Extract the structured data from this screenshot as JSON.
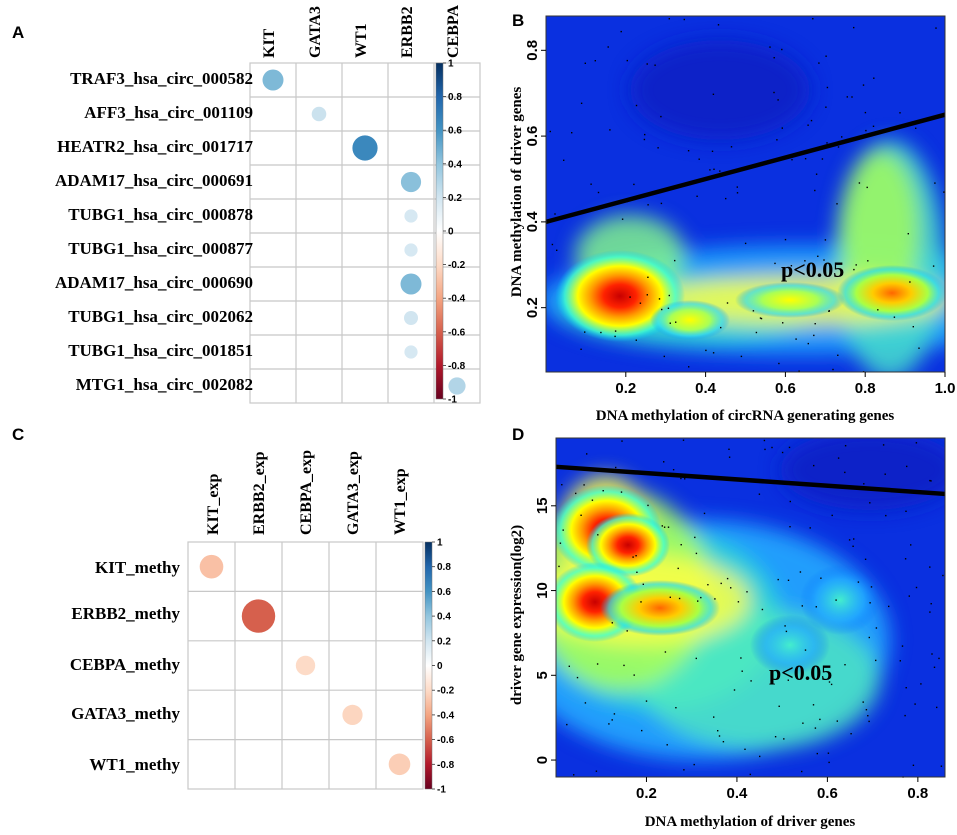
{
  "chart_data": [
    {
      "panel": "A",
      "type": "heatmap",
      "subtype": "correlation-dot-matrix",
      "columns": [
        "KIT",
        "GATA3",
        "WT1",
        "ERBB2",
        "CEBPA"
      ],
      "rows": [
        "TRAF3_hsa_circ_000582",
        "AFF3_hsa_circ_001109",
        "HEATR2_hsa_circ_001717",
        "ADAM17_hsa_circ_000691",
        "TUBG1_hsa_circ_000878",
        "TUBG1_hsa_circ_000877",
        "ADAM17_hsa_circ_000690",
        "TUBG1_hsa_circ_002062",
        "TUBG1_hsa_circ_001851",
        "MTG1_hsa_circ_002082"
      ],
      "values": [
        {
          "row": 0,
          "col": 0,
          "value": 0.45
        },
        {
          "row": 1,
          "col": 1,
          "value": 0.22
        },
        {
          "row": 2,
          "col": 2,
          "value": 0.65
        },
        {
          "row": 3,
          "col": 3,
          "value": 0.42
        },
        {
          "row": 4,
          "col": 3,
          "value": 0.18
        },
        {
          "row": 5,
          "col": 3,
          "value": 0.18
        },
        {
          "row": 6,
          "col": 3,
          "value": 0.45
        },
        {
          "row": 7,
          "col": 3,
          "value": 0.2
        },
        {
          "row": 8,
          "col": 3,
          "value": 0.18
        },
        {
          "row": 9,
          "col": 4,
          "value": 0.3
        }
      ],
      "colorbar": {
        "range": [
          -1,
          1
        ],
        "ticks": [
          "1",
          "0.8",
          "0.6",
          "0.4",
          "0.2",
          "0",
          "-0.2",
          "-0.4",
          "-0.6",
          "-0.8",
          "-1"
        ]
      }
    },
    {
      "panel": "B",
      "type": "scatter",
      "subtype": "density-scatter",
      "xlabel": "DNA methylation of circRNA generating genes",
      "ylabel": "DNA methylation of driver genes",
      "xlim": [
        0,
        1
      ],
      "ylim": [
        0.05,
        0.88
      ],
      "xticks": [
        "0.2",
        "0.4",
        "0.6",
        "0.8",
        "1.0"
      ],
      "yticks": [
        "0.2",
        "0.4",
        "0.6",
        "0.8"
      ],
      "regression_line": {
        "x": [
          0,
          1
        ],
        "y": [
          0.4,
          0.65
        ]
      },
      "density_peaks": [
        {
          "x": 0.15,
          "y": 0.2,
          "intensity": 1.0
        },
        {
          "x": 0.9,
          "y": 0.21,
          "intensity": 0.7
        }
      ],
      "annotation": "p<0.05"
    },
    {
      "panel": "C",
      "type": "heatmap",
      "subtype": "correlation-dot-matrix",
      "columns": [
        "KIT_exp",
        "ERBB2_exp",
        "CEBPA_exp",
        "GATA3_exp",
        "WT1_exp"
      ],
      "rows": [
        "KIT_methy",
        "ERBB2_methy",
        "CEBPA_methy",
        "GATA3_methy",
        "WT1_methy"
      ],
      "values": [
        {
          "row": 0,
          "col": 0,
          "value": -0.3
        },
        {
          "row": 1,
          "col": 1,
          "value": -0.6
        },
        {
          "row": 2,
          "col": 2,
          "value": -0.2
        },
        {
          "row": 3,
          "col": 3,
          "value": -0.22
        },
        {
          "row": 4,
          "col": 4,
          "value": -0.25
        }
      ],
      "colorbar": {
        "range": [
          -1,
          1
        ],
        "ticks": [
          "1",
          "0.8",
          "0.6",
          "0.4",
          "0.2",
          "0",
          "-0.2",
          "-0.4",
          "-0.6",
          "-0.8",
          "-1"
        ]
      }
    },
    {
      "panel": "D",
      "type": "scatter",
      "subtype": "density-scatter",
      "xlabel": "DNA methylation of driver genes",
      "ylabel": "driver gene expression(log2)",
      "xlim": [
        0,
        0.86
      ],
      "ylim": [
        -1,
        19
      ],
      "xticks": [
        "0.2",
        "0.4",
        "0.6",
        "0.8"
      ],
      "yticks": [
        "0",
        "5",
        "10",
        "15"
      ],
      "regression_line": {
        "x": [
          0,
          0.86
        ],
        "y": [
          17.3,
          15.7
        ]
      },
      "density_peaks": [
        {
          "x": 0.1,
          "y": 13.5,
          "intensity": 1.0
        },
        {
          "x": 0.08,
          "y": 9.5,
          "intensity": 0.95
        },
        {
          "x": 0.19,
          "y": 12.8,
          "intensity": 0.85
        }
      ],
      "annotation": "p<0.05"
    }
  ],
  "panel_labels": {
    "a": "A",
    "b": "B",
    "c": "C",
    "d": "D"
  },
  "colors": {
    "pos_strong": "#053061",
    "pos_mid": "#4393c3",
    "pos_light": "#d1e5f0",
    "neg_light": "#fddbc7",
    "neg_mid": "#d6604d",
    "neg_strong": "#67001f",
    "grid": "#c8c8c8",
    "density_low": "#0000c8"
  }
}
